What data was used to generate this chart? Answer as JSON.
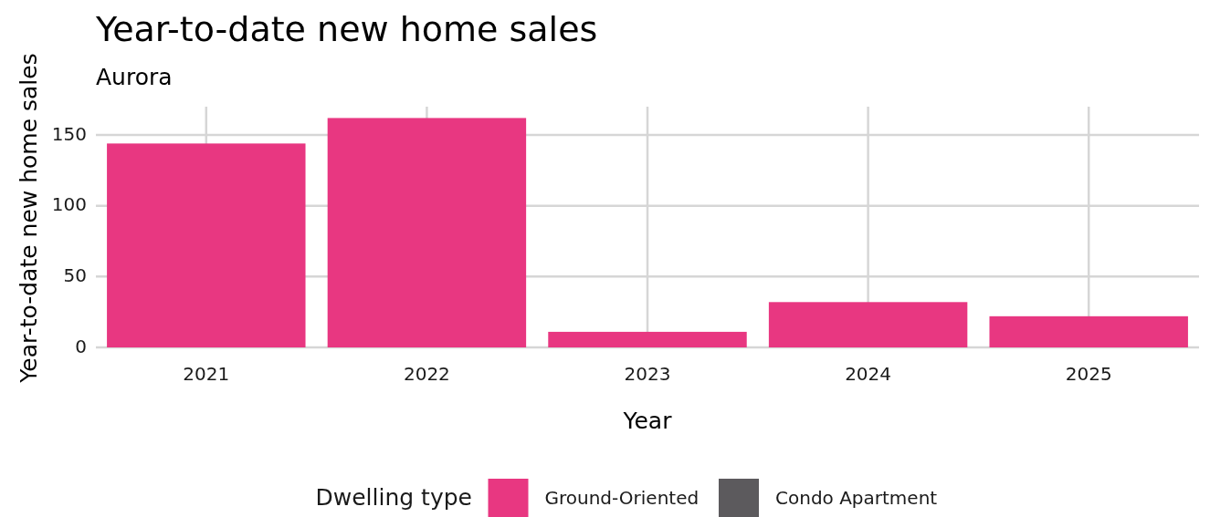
{
  "chart_data": {
    "type": "bar",
    "title": "Year-to-date new home sales",
    "subtitle": "Aurora",
    "xlabel": "Year",
    "ylabel": "Year-to-date new home sales",
    "legend_title": "Dwelling type",
    "categories": [
      "2021",
      "2022",
      "2023",
      "2024",
      "2025"
    ],
    "series": [
      {
        "name": "Ground-Oriented",
        "color": "#e83781",
        "values": [
          144,
          162,
          11,
          32,
          22
        ]
      },
      {
        "name": "Condo Apartment",
        "color": "#5c5a5d",
        "values": [
          0,
          0,
          0,
          0,
          0
        ]
      }
    ],
    "ylim": [
      0,
      170
    ],
    "yticks": [
      0,
      50,
      100,
      150
    ],
    "grid": true,
    "legend": "bottom"
  }
}
